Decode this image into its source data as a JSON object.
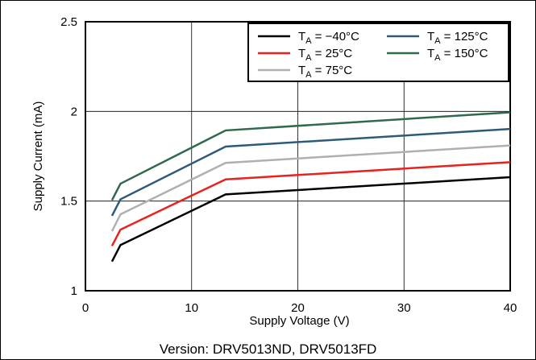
{
  "chart_data": {
    "type": "line",
    "xlabel": "Supply Voltage (V)",
    "ylabel": "Supply Current (mA)",
    "xlim": [
      0,
      40
    ],
    "ylim": [
      1,
      2.5
    ],
    "xticks": [
      0,
      10,
      20,
      30,
      40
    ],
    "yticks": [
      1,
      1.5,
      2,
      2.5
    ],
    "ytick_labels": [
      "1",
      "1.5",
      "2",
      "2.5"
    ],
    "grid": true,
    "legend_position": "top-right",
    "series": [
      {
        "name": "T",
        "sub": "A",
        "tail": " = −40°C",
        "color": "#000000",
        "x": [
          2.5,
          3.3,
          13.2,
          40
        ],
        "y": [
          1.163,
          1.255,
          1.537,
          1.633
        ]
      },
      {
        "name": "T",
        "sub": "A",
        "tail": " = 25°C",
        "color": "#e8221f",
        "x": [
          2.5,
          3.3,
          13.2,
          40
        ],
        "y": [
          1.25,
          1.341,
          1.621,
          1.717
        ]
      },
      {
        "name": "T",
        "sub": "A",
        "tail": " = 75°C",
        "color": "#b0b0b0",
        "x": [
          2.5,
          3.3,
          13.2,
          40
        ],
        "y": [
          1.332,
          1.426,
          1.713,
          1.81
        ]
      },
      {
        "name": "T",
        "sub": "A",
        "tail": " = 125°C",
        "color": "#2c5b79",
        "x": [
          2.5,
          3.3,
          13.2,
          40
        ],
        "y": [
          1.418,
          1.51,
          1.804,
          1.902
        ]
      },
      {
        "name": "T",
        "sub": "A",
        "tail": " = 150°C",
        "color": "#2e6a4c",
        "x": [
          2.5,
          3.3,
          13.2,
          40
        ],
        "y": [
          1.505,
          1.597,
          1.894,
          1.995
        ]
      }
    ]
  },
  "caption": "Version: DRV5013ND, DRV5013FD"
}
